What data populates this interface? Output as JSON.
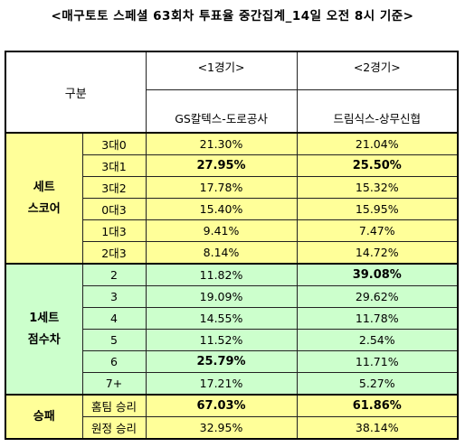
{
  "title": "<매구토토 스페셜 63회차 투표율 중간집계_14일 오전 8시 기준>",
  "header": {
    "gubun": "구분",
    "game1": "<1경기>",
    "game2": "<2경기>",
    "team1": "GS칼텍스-도로공사",
    "team2": "드림식스-상무신협"
  },
  "sections": [
    {
      "label_line1": "세트",
      "label_line2": "스코어",
      "color": "#ffff99",
      "rows": [
        {
          "sub": "3대0",
          "v1": "21.30%",
          "v2": "21.04%",
          "b1": false,
          "b2": false
        },
        {
          "sub": "3대1",
          "v1": "27.95%",
          "v2": "25.50%",
          "b1": true,
          "b2": true
        },
        {
          "sub": "3대2",
          "v1": "17.78%",
          "v2": "15.32%",
          "b1": false,
          "b2": false
        },
        {
          "sub": "0대3",
          "v1": "15.40%",
          "v2": "15.95%",
          "b1": false,
          "b2": false
        },
        {
          "sub": "1대3",
          "v1": "9.41%",
          "v2": "7.47%",
          "b1": false,
          "b2": false
        },
        {
          "sub": "2대3",
          "v1": "8.14%",
          "v2": "14.72%",
          "b1": false,
          "b2": false
        }
      ]
    },
    {
      "label_line1": "1세트",
      "label_line2": "점수차",
      "color": "#ccffcc",
      "rows": [
        {
          "sub": "2",
          "v1": "11.82%",
          "v2": "39.08%",
          "b1": false,
          "b2": true
        },
        {
          "sub": "3",
          "v1": "19.09%",
          "v2": "29.62%",
          "b1": false,
          "b2": false
        },
        {
          "sub": "4",
          "v1": "14.55%",
          "v2": "11.78%",
          "b1": false,
          "b2": false
        },
        {
          "sub": "5",
          "v1": "11.52%",
          "v2": "2.54%",
          "b1": false,
          "b2": false
        },
        {
          "sub": "6",
          "v1": "25.79%",
          "v2": "11.71%",
          "b1": true,
          "b2": false
        },
        {
          "sub": "7+",
          "v1": "17.21%",
          "v2": "5.27%",
          "b1": false,
          "b2": false
        }
      ]
    },
    {
      "label_line1": "승패",
      "label_line2": "",
      "color": "#ffff99",
      "rows": [
        {
          "sub": "홈팀 승리",
          "v1": "67.03%",
          "v2": "61.86%",
          "b1": true,
          "b2": true
        },
        {
          "sub": "원정 승리",
          "v1": "32.95%",
          "v2": "38.14%",
          "b1": false,
          "b2": false
        }
      ]
    }
  ]
}
